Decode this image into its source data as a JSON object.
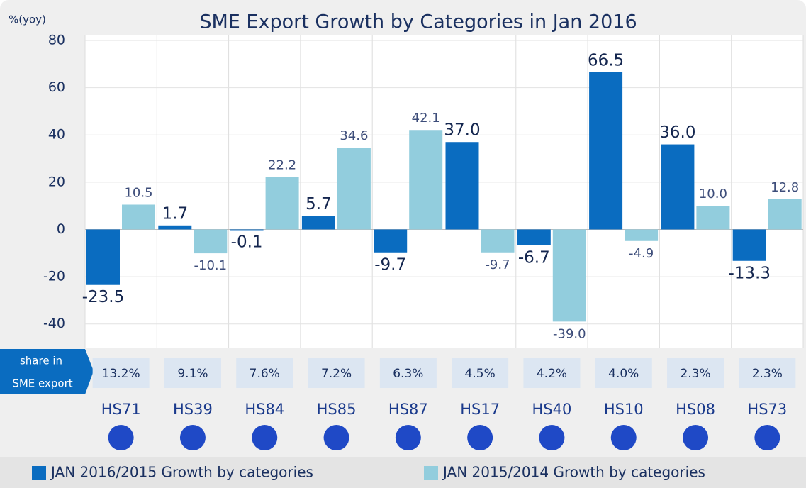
{
  "chart_data": {
    "type": "bar",
    "title": "SME Export Growth by Categories in Jan 2016",
    "y_label": "%(yoy)",
    "categories": [
      "HS71",
      "HS39",
      "HS84",
      "HS85",
      "HS87",
      "HS17",
      "HS40",
      "HS10",
      "HS08",
      "HS73"
    ],
    "series": [
      {
        "name": "JAN 2016/2015 Growth by categories",
        "color": "#0a6cc0",
        "values": [
          -23.5,
          1.7,
          -0.1,
          5.7,
          -9.7,
          37.0,
          -6.7,
          66.5,
          36.0,
          -13.3
        ],
        "value_labels": [
          "-23.5",
          "1.7",
          "-0.1",
          "5.7",
          "-9.7",
          "37.0",
          "-6.7",
          "66.5",
          "36.0",
          "-13.3"
        ]
      },
      {
        "name": "JAN 2015/2014 Growth by categories",
        "color": "#92cddd",
        "values": [
          10.5,
          -10.1,
          22.2,
          34.6,
          42.1,
          -9.7,
          -39.0,
          -4.9,
          10.0,
          12.8
        ],
        "value_labels": [
          "10.5",
          "-10.1",
          "22.2",
          "34.6",
          "42.1",
          "-9.7",
          "-39.0",
          "-4.9",
          "10.0",
          "12.8"
        ]
      }
    ],
    "share": {
      "label": [
        "share in",
        "SME export"
      ],
      "values": [
        13.2,
        9.1,
        7.6,
        7.2,
        6.3,
        4.5,
        4.2,
        4.0,
        2.3,
        2.3
      ],
      "value_labels": [
        "13.2%",
        "9.1%",
        "7.6%",
        "7.2%",
        "6.3%",
        "4.5%",
        "4.2%",
        "4.0%",
        "2.3%",
        "2.3%"
      ]
    },
    "ylim": [
      -50,
      80
    ],
    "yticks": [
      -40,
      -20,
      0,
      20,
      40,
      60,
      80
    ],
    "grid": true,
    "legend": "bottom"
  }
}
